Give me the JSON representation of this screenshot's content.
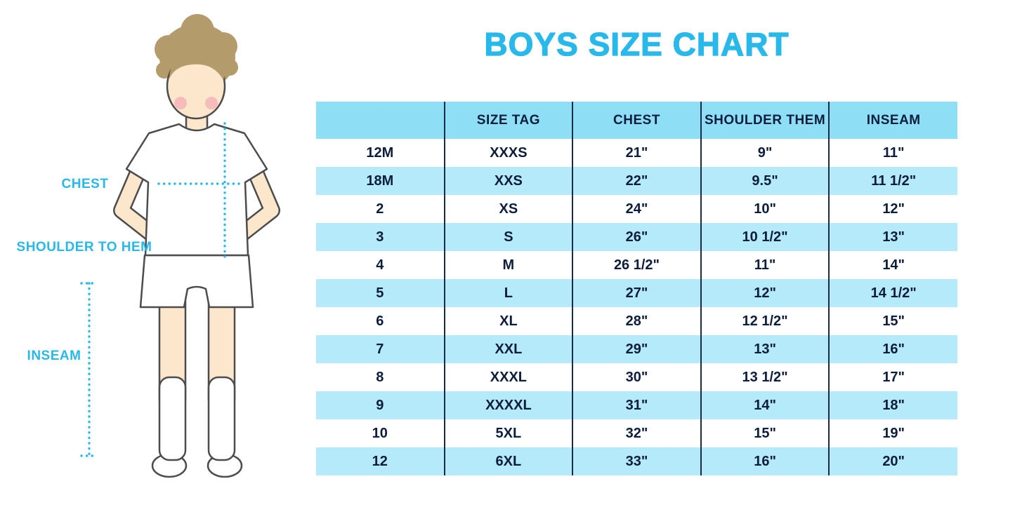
{
  "title": "BOYS SIZE CHART",
  "figure": {
    "chest_label": "CHEST",
    "shoulder_to_hem_label": "SHOULDER TO HEM",
    "inseam_label": "INSEAM"
  },
  "colors": {
    "accent": "#29b8ea",
    "header_bg": "#8edef6",
    "stripe_bg": "#b5eafa",
    "text_dark": "#0d1d3c",
    "col_border": "#1c2b45",
    "skin": "#fce7cc",
    "hair": "#b49b6c",
    "blush": "#f2a9b4",
    "outline": "#4c4c4c"
  },
  "chart_data": {
    "type": "table",
    "title": "BOYS SIZE CHART",
    "columns": [
      "",
      "SIZE TAG",
      "CHEST",
      "SHOULDER THEM",
      "INSEAM"
    ],
    "rows": [
      [
        "12M",
        "XXXS",
        "21\"",
        "9\"",
        "11\""
      ],
      [
        "18M",
        "XXS",
        "22\"",
        "9.5\"",
        "11 1/2\""
      ],
      [
        "2",
        "XS",
        "24\"",
        "10\"",
        "12\""
      ],
      [
        "3",
        "S",
        "26\"",
        "10 1/2\"",
        "13\""
      ],
      [
        "4",
        "M",
        "26 1/2\"",
        "11\"",
        "14\""
      ],
      [
        "5",
        "L",
        "27\"",
        "12\"",
        "14 1/2\""
      ],
      [
        "6",
        "XL",
        "28\"",
        "12 1/2\"",
        "15\""
      ],
      [
        "7",
        "XXL",
        "29\"",
        "13\"",
        "16\""
      ],
      [
        "8",
        "XXXL",
        "30\"",
        "13 1/2\"",
        "17\""
      ],
      [
        "9",
        "XXXXL",
        "31\"",
        "14\"",
        "18\""
      ],
      [
        "10",
        "5XL",
        "32\"",
        "15\"",
        "19\""
      ],
      [
        "12",
        "6XL",
        "33\"",
        "16\"",
        "20\""
      ]
    ]
  }
}
